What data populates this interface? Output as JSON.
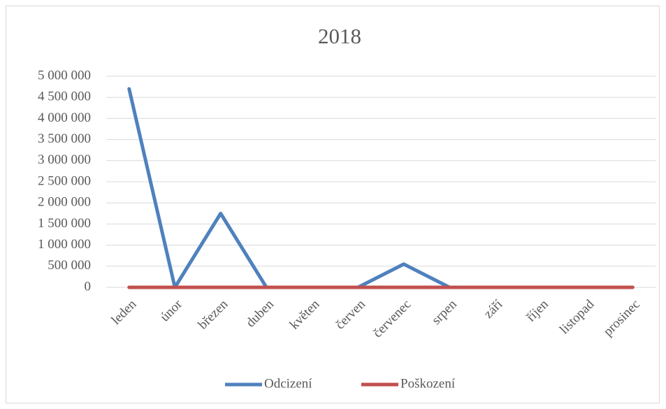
{
  "chart_data": {
    "type": "line",
    "title": "2018",
    "categories": [
      "leden",
      "únor",
      "březen",
      "duben",
      "květen",
      "červen",
      "červenec",
      "srpen",
      "září",
      "říjen",
      "listopad",
      "prosinec"
    ],
    "series": [
      {
        "name": "Odcizení",
        "color": "#4f81bd",
        "values": [
          4700000,
          0,
          1750000,
          0,
          0,
          0,
          550000,
          0,
          0,
          0,
          0,
          0
        ]
      },
      {
        "name": "Poškození",
        "color": "#c0504d",
        "values": [
          0,
          0,
          0,
          0,
          0,
          0,
          0,
          0,
          0,
          0,
          0,
          0
        ]
      }
    ],
    "ylim": [
      0,
      5000000
    ],
    "yticks": [
      0,
      {
        "value": 500000,
        "label": "500 000"
      },
      {
        "value": 1000000,
        "label": "1 000 000"
      },
      {
        "value": 1500000,
        "label": "1 500 000"
      },
      {
        "value": 2000000,
        "label": "2 000 000"
      },
      {
        "value": 2500000,
        "label": "2 500 000"
      },
      {
        "value": 3000000,
        "label": "3 000 000"
      },
      {
        "value": 3500000,
        "label": "3 500 000"
      },
      {
        "value": 4000000,
        "label": "4 000 000"
      },
      {
        "value": 4500000,
        "label": "4 500 000"
      },
      {
        "value": 5000000,
        "label": "5 000 000"
      }
    ],
    "grid": true,
    "legend": "bottom"
  }
}
